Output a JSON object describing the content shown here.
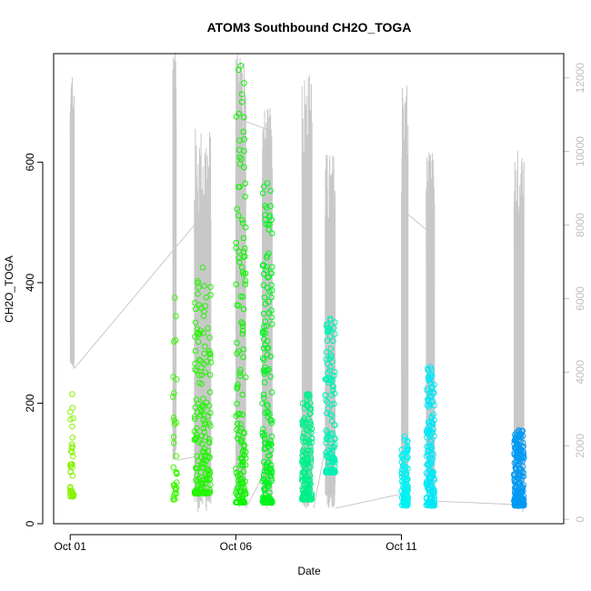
{
  "chart_data": {
    "type": "scatter",
    "title": "ATOM3 Southbound CH2O_TOGA",
    "xlabel": "Date",
    "ylabel": "CH2O_TOGA",
    "x_ticks": [
      "Oct 01",
      "Oct 06",
      "Oct 11"
    ],
    "x_tick_days": [
      1,
      6,
      11
    ],
    "xlim_days": [
      0.5,
      15.9
    ],
    "ylim": [
      0,
      780
    ],
    "y_ticks": [
      0,
      200,
      400,
      600
    ],
    "y2_ticks": [
      0,
      2000,
      4000,
      6000,
      8000,
      10000,
      12000
    ],
    "y2lim": [
      -120,
      12660
    ],
    "grid": false,
    "legend": "none",
    "colors": {
      "secondary_line": "#c8c8c8",
      "secondary_axis": "#c0c0c0",
      "axis": "#000000"
    },
    "secondary_series": {
      "type": "line",
      "description_units": "altitude (right axis)",
      "segments": [
        {
          "x0": 1.0,
          "x1": 1.12,
          "base": 4100,
          "peak": 12100
        },
        {
          "x0": 4.1,
          "x1": 4.2,
          "base": 1600,
          "peak": 12700
        },
        {
          "x0": 4.75,
          "x1": 5.25,
          "base": 200,
          "peak": 10700
        },
        {
          "x0": 6.0,
          "x1": 6.3,
          "base": 300,
          "peak": 12700
        },
        {
          "x0": 6.8,
          "x1": 7.1,
          "base": 300,
          "peak": 11200
        },
        {
          "x0": 8.0,
          "x1": 8.3,
          "base": 300,
          "peak": 12200
        },
        {
          "x0": 8.7,
          "x1": 9.0,
          "base": 300,
          "peak": 10000
        },
        {
          "x0": 11.0,
          "x1": 11.2,
          "base": 500,
          "peak": 11800
        },
        {
          "x0": 11.75,
          "x1": 12.0,
          "base": 500,
          "peak": 10000
        },
        {
          "x0": 14.4,
          "x1": 14.7,
          "base": 200,
          "peak": 10100
        }
      ],
      "connectors": [
        [
          1.12,
          4100,
          4.75,
          8000
        ],
        [
          4.2,
          1600,
          4.75,
          1700
        ],
        [
          6.05,
          10900,
          6.95,
          10600
        ],
        [
          6.3,
          300,
          6.95,
          1400
        ],
        [
          8.35,
          300,
          8.95,
          3100
        ],
        [
          8.95,
          3100,
          9.0,
          3600
        ],
        [
          9.0,
          300,
          11.05,
          700
        ],
        [
          11.05,
          8400,
          11.85,
          7800
        ],
        [
          11.85,
          500,
          14.5,
          400
        ]
      ]
    },
    "clusters": [
      {
        "x0": 1.0,
        "x1": 1.12,
        "ymin": 45,
        "ymax": 215,
        "n": 40,
        "color": "#88f200"
      },
      {
        "x0": 4.1,
        "x1": 4.22,
        "ymin": 40,
        "ymax": 375,
        "n": 30,
        "color": "#3df700"
      },
      {
        "x0": 4.75,
        "x1": 5.25,
        "ymin": 50,
        "ymax": 425,
        "n": 170,
        "color": "#22f600"
      },
      {
        "x0": 6.0,
        "x1": 6.3,
        "ymin": 35,
        "ymax": 760,
        "n": 150,
        "color": "#10f400"
      },
      {
        "x0": 6.8,
        "x1": 7.1,
        "ymin": 35,
        "ymax": 565,
        "n": 180,
        "color": "#00f31c"
      },
      {
        "x0": 8.0,
        "x1": 8.3,
        "ymin": 40,
        "ymax": 215,
        "n": 170,
        "color": "#00f08a"
      },
      {
        "x0": 8.7,
        "x1": 9.0,
        "ymin": 85,
        "ymax": 340,
        "n": 120,
        "color": "#00f0b4"
      },
      {
        "x0": 11.0,
        "x1": 11.2,
        "ymin": 30,
        "ymax": 145,
        "n": 110,
        "color": "#00f2f2"
      },
      {
        "x0": 11.75,
        "x1": 12.0,
        "ymin": 30,
        "ymax": 260,
        "n": 180,
        "color": "#00e8f6"
      },
      {
        "x0": 14.4,
        "x1": 14.7,
        "ymin": 30,
        "ymax": 155,
        "n": 220,
        "color": "#009af4"
      }
    ]
  }
}
